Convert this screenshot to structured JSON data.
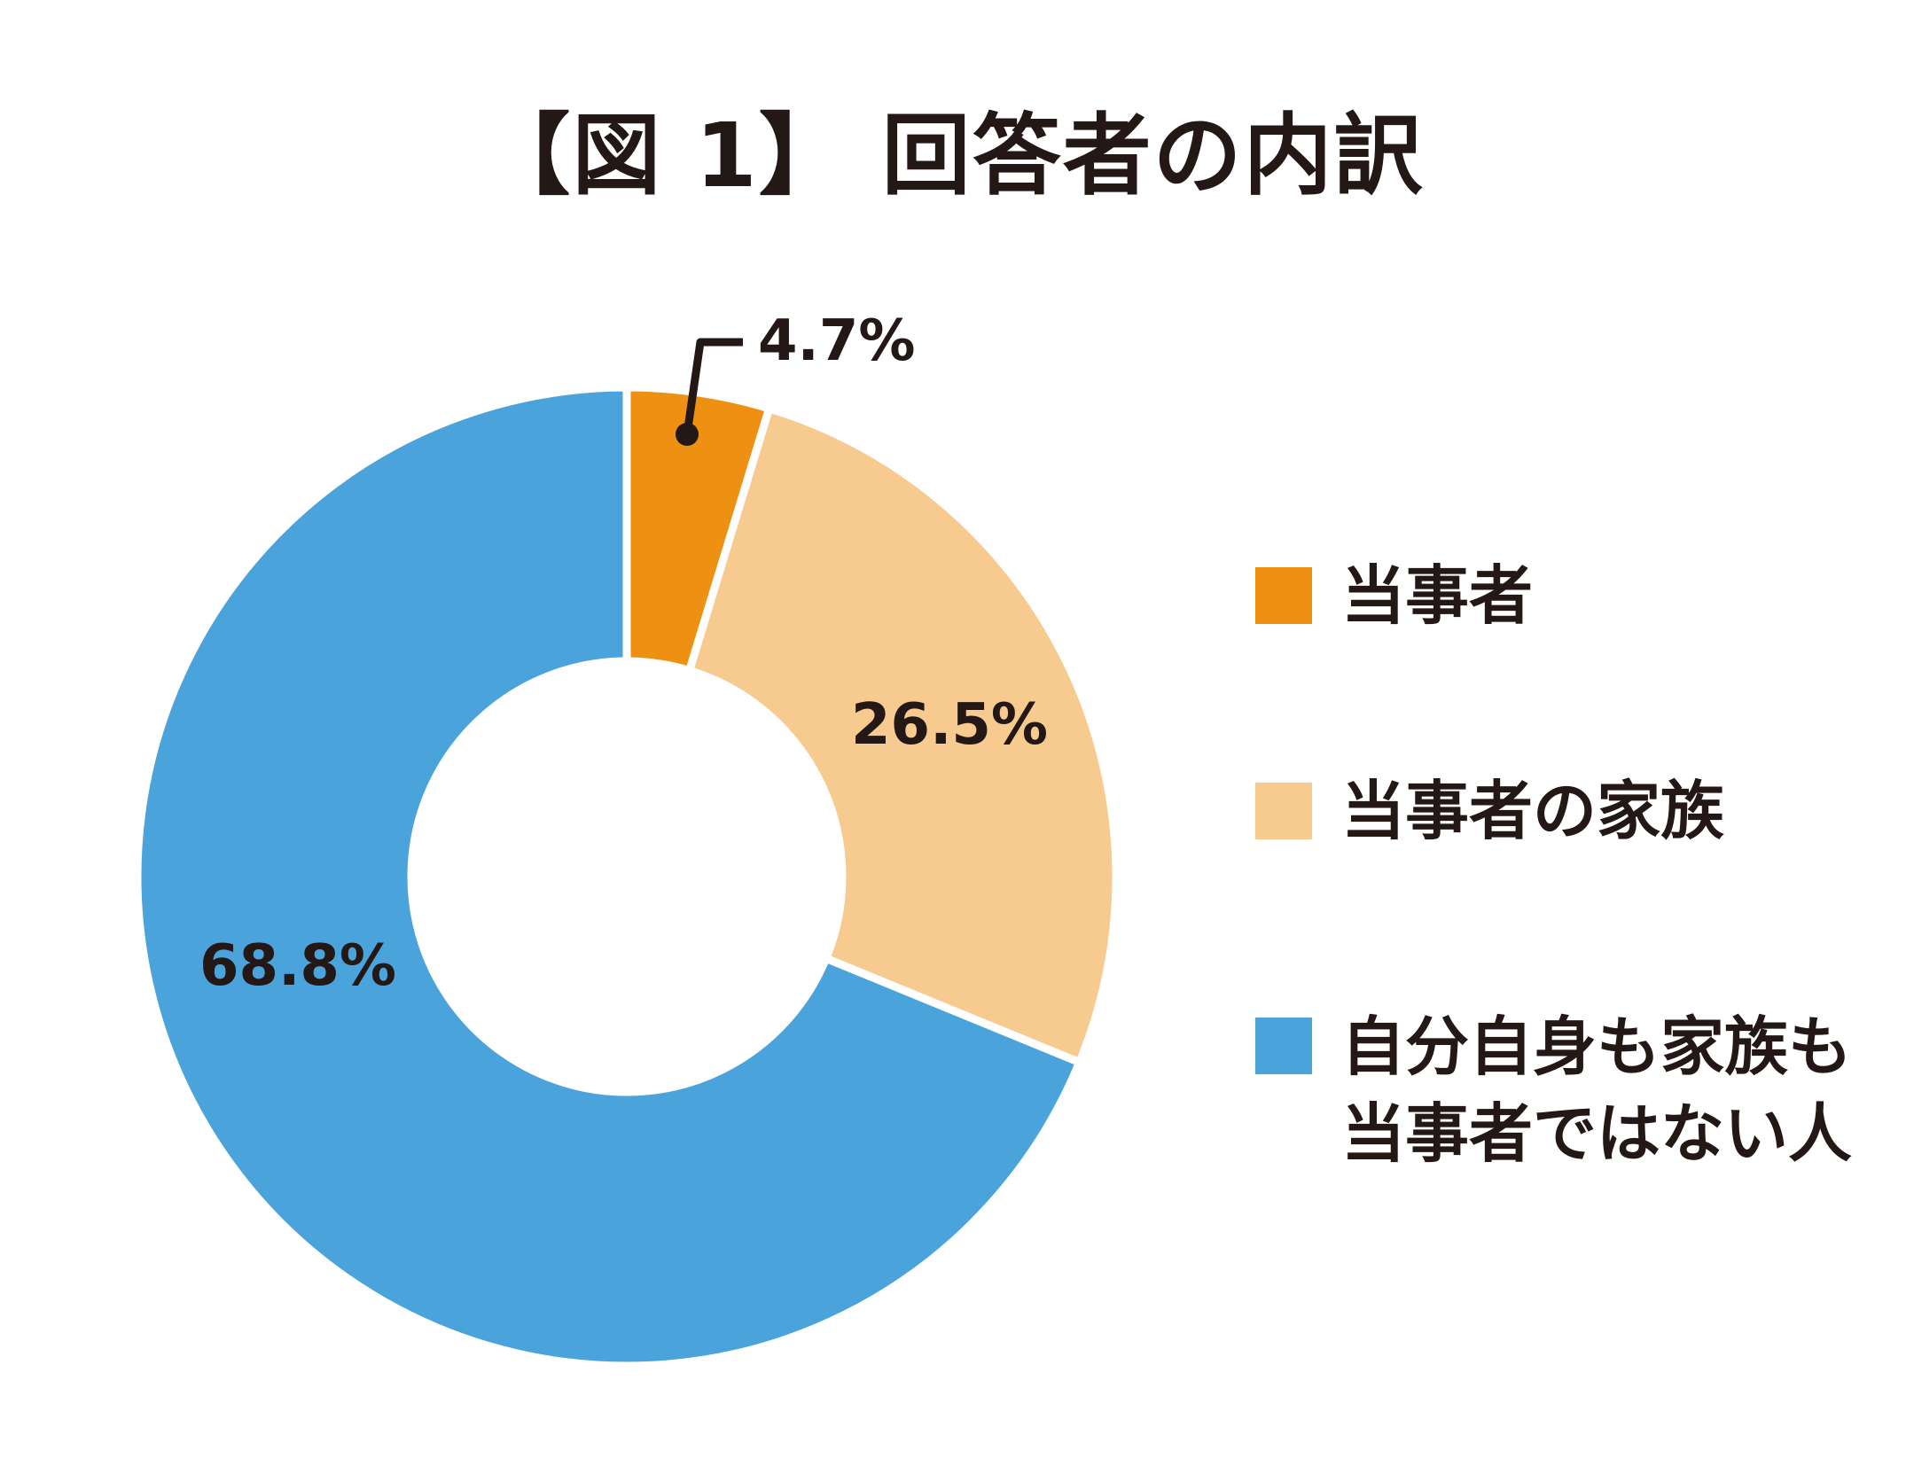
{
  "page": {
    "background_color": "#ffffff",
    "ink_color": "#231815"
  },
  "chart_data": {
    "type": "pie",
    "variant": "donut",
    "title": "【図 1】 回答者の内訳",
    "start_angle_deg_from_top": 0,
    "direction": "clockwise",
    "grid": false,
    "legend_position": "right",
    "slices": [
      {
        "label": "当事者",
        "value": 4.7,
        "pct_label": "4.7%",
        "color": "#ee9012",
        "label_placement": "outside-callout"
      },
      {
        "label": "当事者の家族",
        "value": 26.5,
        "pct_label": "26.5%",
        "color": "#f7ca90",
        "label_placement": "inside"
      },
      {
        "label": "自分自身も家族も当事者ではない人",
        "value": 68.8,
        "pct_label": "68.8%",
        "color": "#4ba3db",
        "label_placement": "inside"
      }
    ],
    "legend": [
      {
        "color": "#ee9012",
        "lines": [
          "当事者"
        ]
      },
      {
        "color": "#f7ca90",
        "lines": [
          "当事者の家族"
        ]
      },
      {
        "color": "#4ba3db",
        "lines": [
          "自分自身も家族も",
          "当事者ではない人"
        ]
      }
    ],
    "callout_color": "#231815"
  }
}
